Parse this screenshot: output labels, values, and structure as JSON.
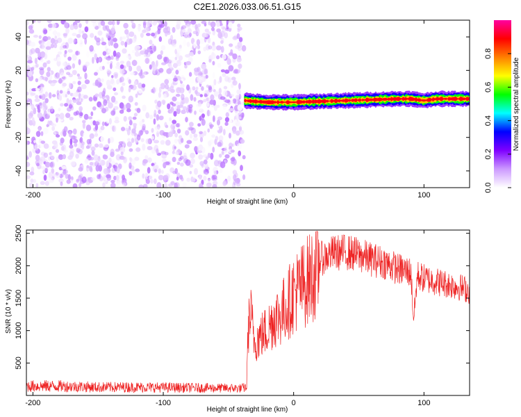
{
  "figure": {
    "title": "C2E1.2026.033.06.51.G15"
  },
  "chart_data": [
    {
      "type": "heatmap",
      "xlabel": "Height of straight line (km)",
      "ylabel": "Frequency (Hz)",
      "xlim": [
        -205,
        135
      ],
      "ylim": [
        -50,
        50
      ],
      "xticks": [
        -200,
        -100,
        0,
        100
      ],
      "yticks": [
        -40,
        -20,
        0,
        20,
        40
      ],
      "colorbar": {
        "label": "Normalized spectral amplitude",
        "ticks": [
          0.0,
          0.2,
          0.4,
          0.6,
          0.8
        ],
        "colors": [
          "#ffffff",
          "#cc99ff",
          "#7f00ff",
          "#0000ff",
          "#00ffff",
          "#00ff00",
          "#ffff00",
          "#ff8000",
          "#ff0000",
          "#ff00a0"
        ]
      },
      "noise_region": {
        "x": [
          -205,
          -38
        ],
        "amplitude": [
          0.0,
          0.15
        ]
      },
      "signal_band": {
        "x": [
          -38,
          135
        ],
        "center_frequency": [
          [
            -38,
            2
          ],
          [
            -30,
            1.5
          ],
          [
            -20,
            1
          ],
          [
            -10,
            1
          ],
          [
            0,
            1
          ],
          [
            20,
            1.5
          ],
          [
            40,
            2
          ],
          [
            60,
            2.5
          ],
          [
            80,
            3
          ],
          [
            90,
            3
          ],
          [
            100,
            2
          ],
          [
            110,
            3
          ],
          [
            135,
            3
          ]
        ],
        "peak_amplitude": 1.0
      }
    },
    {
      "type": "line",
      "xlabel": "Height of straight line (km)",
      "ylabel": "SNR (10 * v/v)",
      "xlim": [
        -205,
        135
      ],
      "ylim": [
        0,
        2550
      ],
      "xticks": [
        -200,
        -100,
        0,
        100
      ],
      "yticks": [
        500,
        1000,
        1500,
        2000,
        2500
      ],
      "series": [
        {
          "color": "#ee2222",
          "envelope": [
            [
              -205,
              170
            ],
            [
              -180,
              170
            ],
            [
              -150,
              150
            ],
            [
              -120,
              150
            ],
            [
              -80,
              140
            ],
            [
              -40,
              130
            ],
            [
              -36,
              150
            ],
            [
              -35,
              1100
            ],
            [
              -33,
              1350
            ],
            [
              -30,
              900
            ],
            [
              -25,
              1000
            ],
            [
              -20,
              1100
            ],
            [
              -15,
              1300
            ],
            [
              -10,
              1350
            ],
            [
              -5,
              1500
            ],
            [
              0,
              1700
            ],
            [
              10,
              1900
            ],
            [
              20,
              2150
            ],
            [
              30,
              2250
            ],
            [
              40,
              2270
            ],
            [
              50,
              2220
            ],
            [
              60,
              2150
            ],
            [
              70,
              2100
            ],
            [
              80,
              2000
            ],
            [
              90,
              1950
            ],
            [
              92,
              1200
            ],
            [
              95,
              1900
            ],
            [
              100,
              1850
            ],
            [
              110,
              1800
            ],
            [
              120,
              1750
            ],
            [
              130,
              1700
            ],
            [
              135,
              1650
            ]
          ]
        }
      ]
    }
  ]
}
